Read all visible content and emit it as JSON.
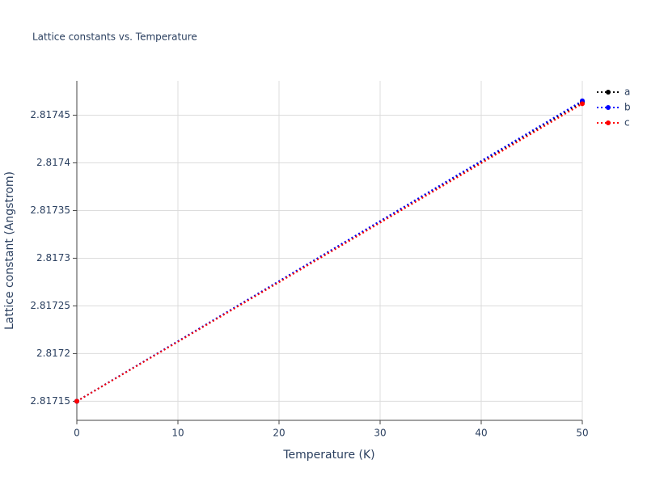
{
  "chart_data": {
    "type": "line",
    "title": "Lattice constants vs. Temperature",
    "xlabel": "Temperature (K)",
    "ylabel": "Lattice constant (Angstrom)",
    "x": [
      0,
      50
    ],
    "series": [
      {
        "name": "a",
        "color": "#000000",
        "values": [
          2.81715,
          2.817464
        ]
      },
      {
        "name": "b",
        "color": "#0000ff",
        "values": [
          2.81715,
          2.817465
        ]
      },
      {
        "name": "c",
        "color": "#ff0000",
        "values": [
          2.81715,
          2.817462
        ]
      }
    ],
    "xlim": [
      0,
      50
    ],
    "xticks": [
      0,
      10,
      20,
      30,
      40,
      50
    ],
    "ylim": [
      2.81713,
      2.817486
    ],
    "yticks": [
      2.81715,
      2.8172,
      2.81725,
      2.8173,
      2.81735,
      2.8174,
      2.81745
    ],
    "grid": true,
    "legend": "right"
  }
}
